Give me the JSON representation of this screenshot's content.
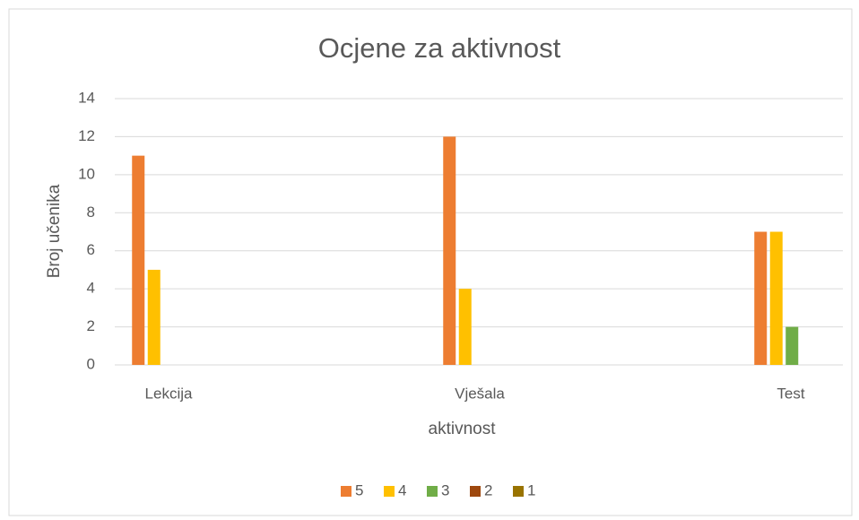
{
  "chart_data": {
    "type": "bar",
    "title": "Ocjene za aktivnost",
    "x_label": "aktivnost",
    "y_label": "Broj učenika",
    "categories": [
      "Lekcija",
      "Vješala",
      "Test"
    ],
    "series": [
      {
        "name": "5",
        "color": "#ed7d31",
        "values": [
          11,
          12,
          7
        ]
      },
      {
        "name": "4",
        "color": "#ffc000",
        "values": [
          5,
          4,
          7
        ]
      },
      {
        "name": "3",
        "color": "#70ad47",
        "values": [
          0,
          0,
          2
        ]
      },
      {
        "name": "2",
        "color": "#9e480e",
        "values": [
          0,
          0,
          0
        ]
      },
      {
        "name": "1",
        "color": "#997300",
        "values": [
          0,
          0,
          0
        ]
      }
    ],
    "ylim": [
      0,
      14
    ],
    "yticks": [
      0,
      2,
      4,
      6,
      8,
      10,
      12,
      14
    ],
    "grid": true,
    "legend": "bottom"
  }
}
